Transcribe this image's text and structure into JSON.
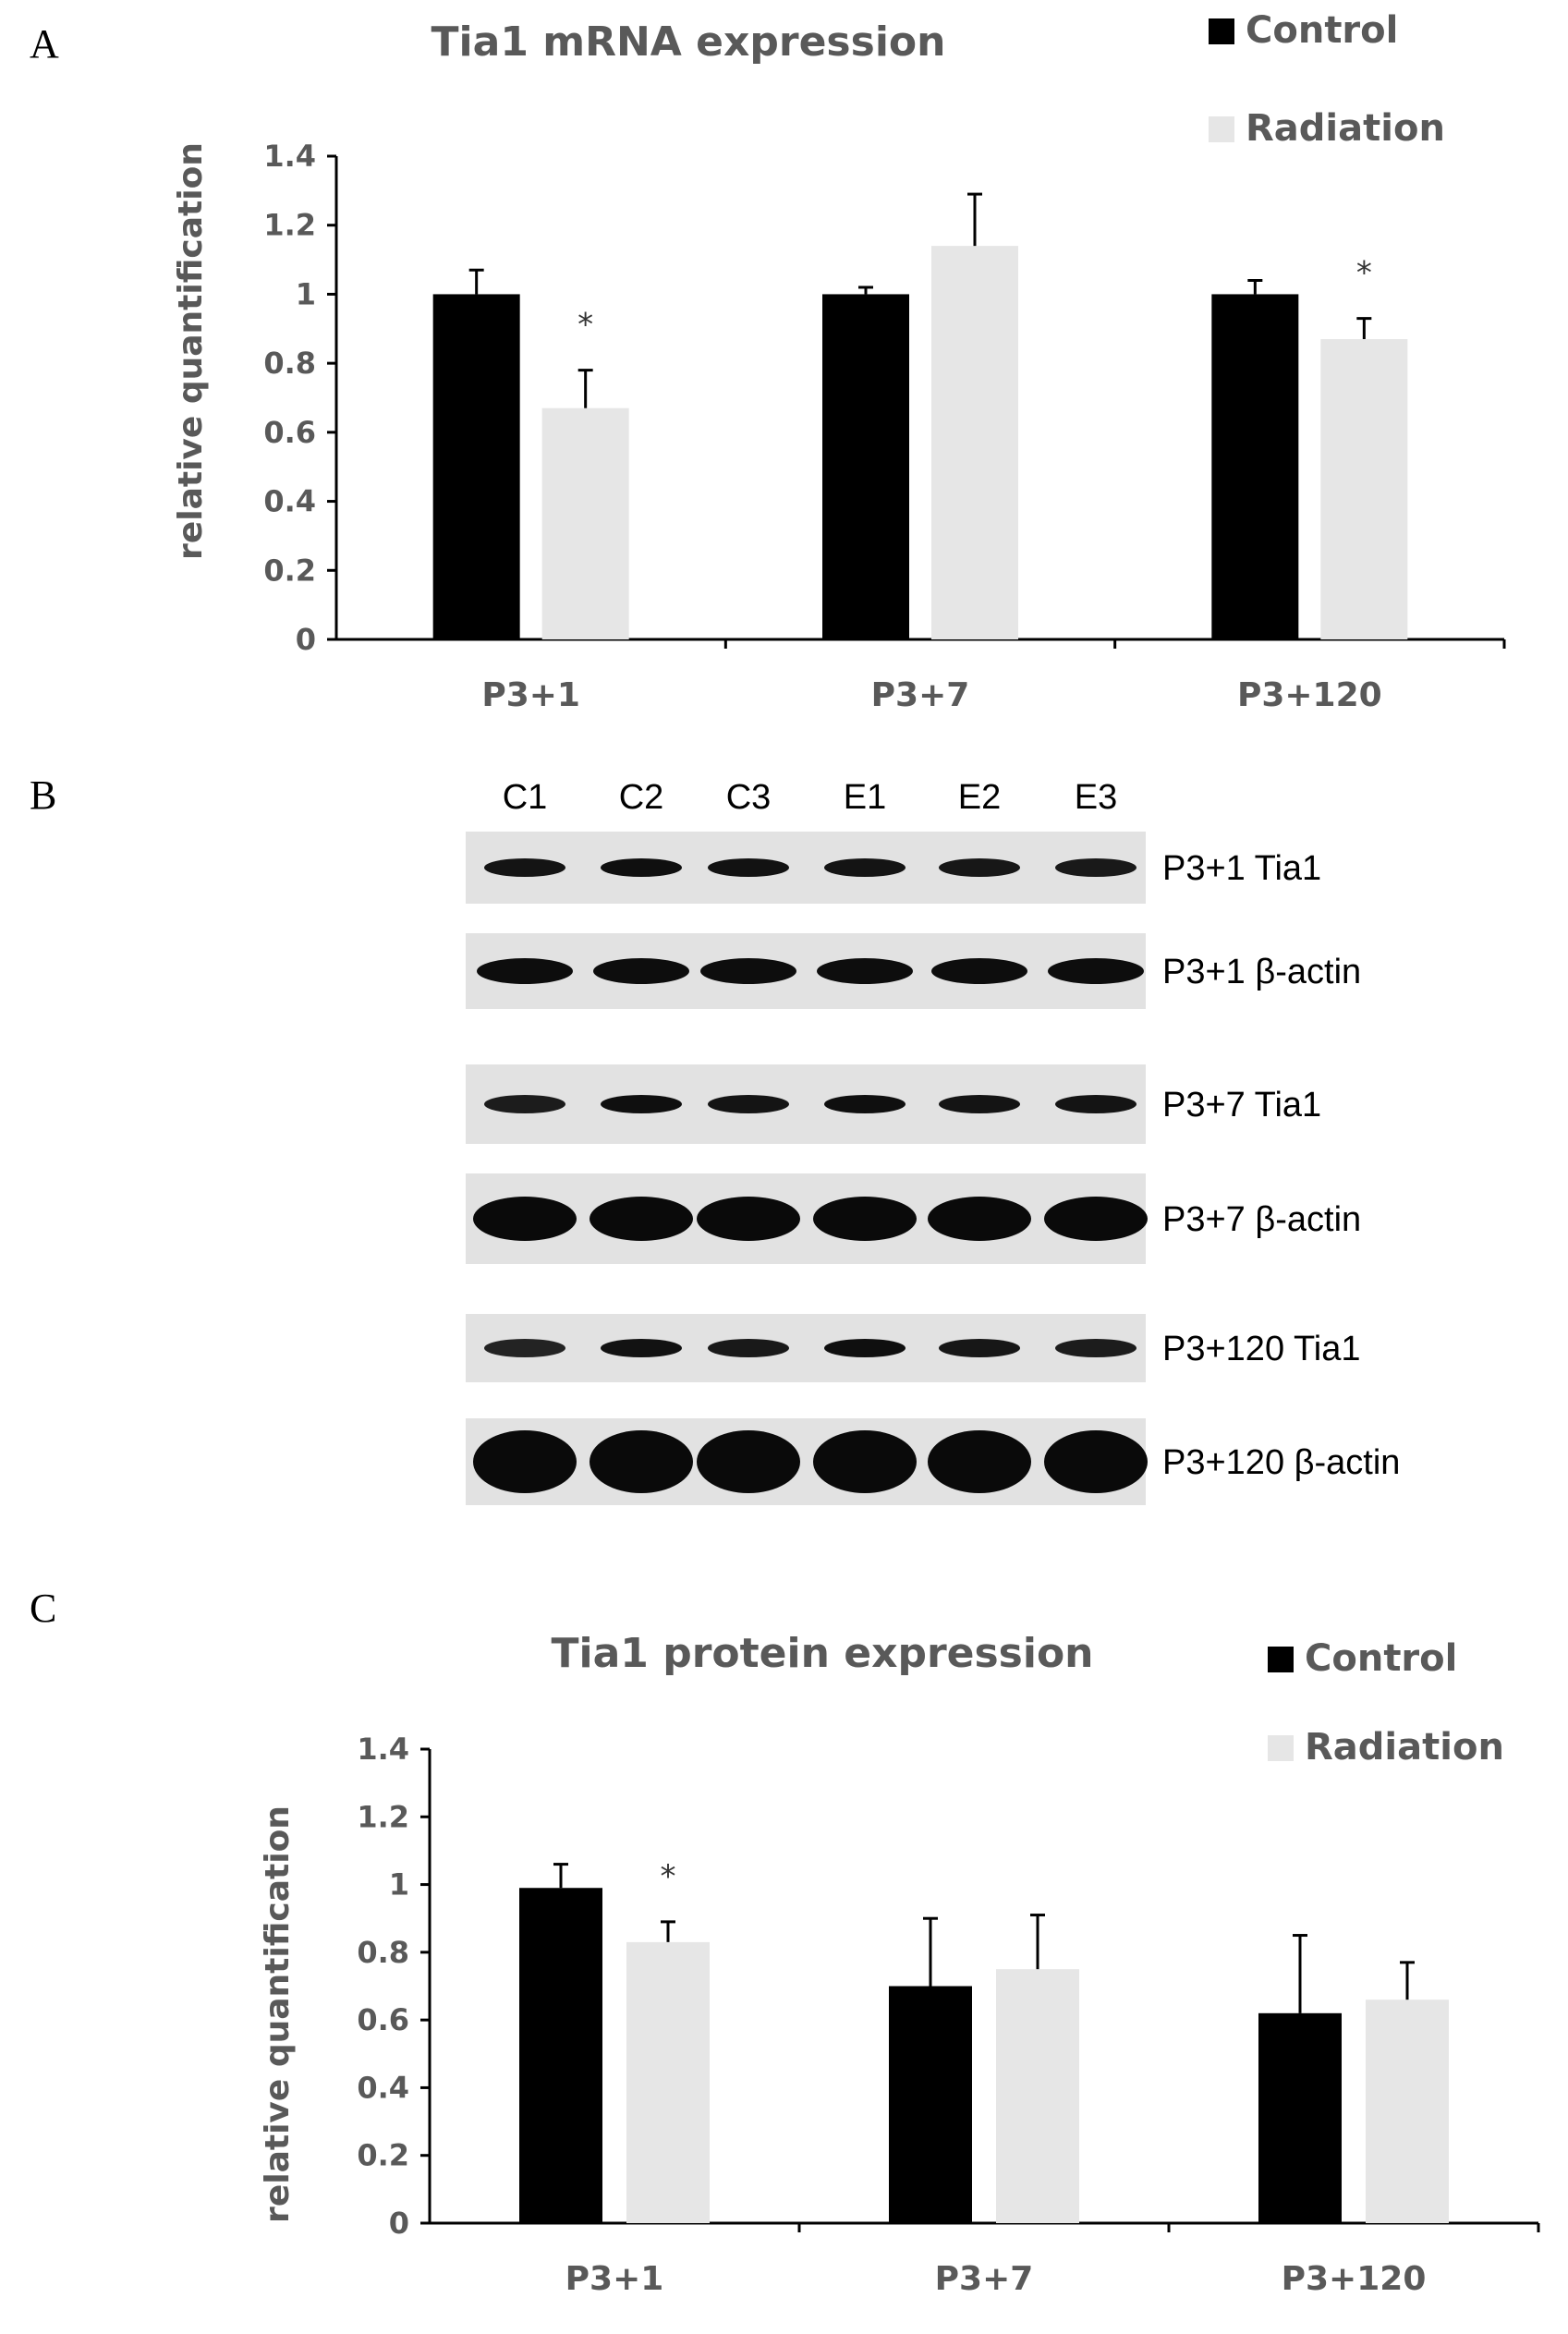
{
  "panels": {
    "A": "A",
    "B": "B",
    "C": "C"
  },
  "colors": {
    "control": "#000000",
    "radiation": "#e6e6e6",
    "axis": "#000000",
    "text": "#595959"
  },
  "chart_data": [
    {
      "type": "bar",
      "title": "Tia1 mRNA expression",
      "ylabel": "relative quantification",
      "xlabel": "",
      "categories": [
        "P3+1",
        "P3+7",
        "P3+120"
      ],
      "ylim": [
        0,
        1.4
      ],
      "yticks": [
        "0",
        "0.2",
        "0.4",
        "0.6",
        "0.8",
        "1",
        "1.2",
        "1.4"
      ],
      "grid": false,
      "legend_position": "top-right",
      "series": [
        {
          "name": "Control",
          "values": [
            1.0,
            1.0,
            1.0
          ],
          "errors": [
            0.07,
            0.02,
            0.04
          ]
        },
        {
          "name": "Radiation",
          "values": [
            0.67,
            1.14,
            0.87
          ],
          "errors": [
            0.11,
            0.15,
            0.06
          ]
        }
      ],
      "significance": [
        "*",
        "",
        "*"
      ]
    },
    {
      "type": "bar",
      "title": "Tia1 protein expression",
      "ylabel": "relative quantification",
      "xlabel": "",
      "categories": [
        "P3+1",
        "P3+7",
        "P3+120"
      ],
      "ylim": [
        0,
        1.4
      ],
      "yticks": [
        "0",
        "0.2",
        "0.4",
        "0.6",
        "0.8",
        "1",
        "1.2",
        "1.4"
      ],
      "grid": false,
      "legend_position": "top-right",
      "series": [
        {
          "name": "Control",
          "values": [
            0.99,
            0.7,
            0.62
          ],
          "errors": [
            0.07,
            0.2,
            0.23
          ]
        },
        {
          "name": "Radiation",
          "values": [
            0.83,
            0.75,
            0.66
          ],
          "errors": [
            0.06,
            0.16,
            0.11
          ]
        }
      ],
      "significance": [
        "*",
        "",
        ""
      ]
    }
  ],
  "blot": {
    "lanes": [
      "C1",
      "C2",
      "C3",
      "E1",
      "E2",
      "E3"
    ],
    "rows": [
      {
        "label": "P3+1 Tia1",
        "kind": "tia",
        "intensity": [
          0.8,
          0.9,
          0.85,
          0.8,
          0.75,
          0.7
        ]
      },
      {
        "label": "P3+1 β-actin",
        "kind": "actin",
        "intensity": [
          0.95,
          0.95,
          0.95,
          0.95,
          0.95,
          0.95
        ]
      },
      {
        "label": "P3+7 Tia1",
        "kind": "tia",
        "intensity": [
          0.65,
          0.9,
          0.8,
          0.9,
          0.8,
          0.8
        ]
      },
      {
        "label": "P3+7 β-actin",
        "kind": "actin_big",
        "intensity": [
          1.0,
          1.0,
          1.0,
          1.0,
          1.0,
          1.0
        ]
      },
      {
        "label": "P3+120 Tia1",
        "kind": "tia",
        "intensity": [
          0.5,
          0.85,
          0.7,
          0.9,
          0.75,
          0.65
        ]
      },
      {
        "label": "P3+120 β-actin",
        "kind": "actin_huge",
        "intensity": [
          1.0,
          1.0,
          1.0,
          1.0,
          1.0,
          1.0
        ]
      }
    ]
  }
}
